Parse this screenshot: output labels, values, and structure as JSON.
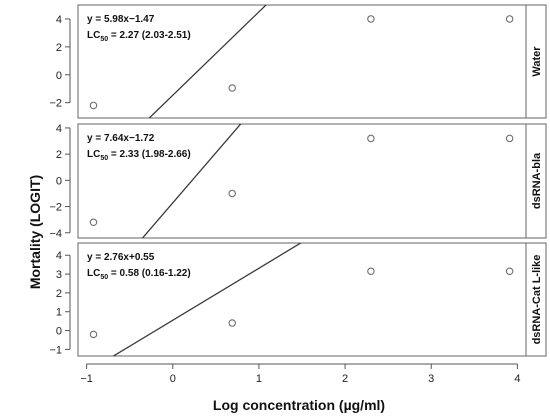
{
  "xlabel": "Log concentration (µg/ml)",
  "ylabel": "Mortality (LOGIT)",
  "x_ticks": [
    -1,
    0,
    1,
    2,
    3,
    4
  ],
  "chart_data": [
    {
      "type": "scatter",
      "panel": "Water",
      "equation": "y = 5.98x−1.47",
      "lc_prefix": "LC",
      "lc_sub": "50",
      "lc_value": " = 2.27 (2.03-2.51)",
      "fit": {
        "slope": 5.98,
        "intercept": -1.47
      },
      "x": [
        -0.92,
        0.69,
        2.3,
        3.91
      ],
      "y": [
        -2.2,
        -0.95,
        4.0,
        4.0
      ],
      "xlim": [
        -1.1,
        4.1
      ],
      "ylim": [
        -3.1,
        5.0
      ],
      "y_ticks": [
        -2,
        0,
        2,
        4
      ]
    },
    {
      "type": "scatter",
      "panel": "dsRNA-bla",
      "equation": "y = 7.64x−1.72",
      "lc_prefix": "LC",
      "lc_sub": "50",
      "lc_value": " = 2.33 (1.98-2.66)",
      "fit": {
        "slope": 7.64,
        "intercept": -1.72
      },
      "x": [
        -0.92,
        0.69,
        2.3,
        3.91
      ],
      "y": [
        -3.2,
        -1.0,
        3.2,
        3.2
      ],
      "xlim": [
        -1.1,
        4.1
      ],
      "ylim": [
        -4.4,
        4.3
      ],
      "y_ticks": [
        -4,
        -2,
        0,
        2,
        4
      ]
    },
    {
      "type": "scatter",
      "panel": "dsRNA-Cat L-like",
      "equation": "y = 2.76x+0.55",
      "lc_prefix": "LC",
      "lc_sub": "50",
      "lc_value": " = 0.58 (0.16-1.22)",
      "fit": {
        "slope": 2.76,
        "intercept": 0.55
      },
      "x": [
        -0.92,
        0.69,
        2.3,
        3.91
      ],
      "y": [
        -0.2,
        0.4,
        3.15,
        3.15
      ],
      "xlim": [
        -1.1,
        4.1
      ],
      "ylim": [
        -1.35,
        4.65
      ],
      "y_ticks": [
        -1,
        0,
        1,
        2,
        3,
        4
      ]
    }
  ]
}
